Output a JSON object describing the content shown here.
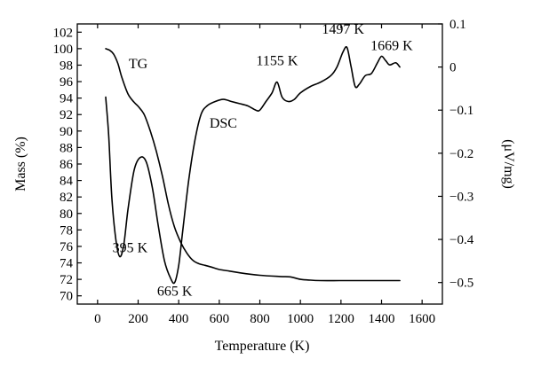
{
  "chart_data": {
    "type": "line",
    "title": "",
    "xlabel": "Temperature (K)",
    "ylabel": "Mass (%)",
    "y2label": "(μV/mg)",
    "xlim": [
      -100,
      1700
    ],
    "ylim": [
      69,
      103
    ],
    "y2lim": [
      -0.55,
      0.1
    ],
    "xticks": [
      0,
      200,
      400,
      600,
      800,
      1000,
      1200,
      1400,
      1600
    ],
    "yticks": [
      70,
      72,
      74,
      76,
      78,
      80,
      82,
      84,
      86,
      88,
      90,
      92,
      94,
      96,
      98,
      100,
      102
    ],
    "y2ticks": [
      -0.5,
      -0.4,
      -0.3,
      -0.2,
      -0.1,
      0,
      0.1
    ],
    "y2ticklabels": [
      "−0.5",
      "−0.4",
      "−0.3",
      "−0.2",
      "−0.1",
      "0",
      "0.1"
    ],
    "grid": false,
    "series": [
      {
        "name": "TG",
        "axis": "left",
        "x": [
          40,
          60,
          80,
          100,
          120,
          150,
          180,
          200,
          230,
          260,
          290,
          320,
          350,
          380,
          410,
          440,
          470,
          500,
          530,
          560,
          600,
          650,
          700,
          800,
          900,
          950,
          1000,
          1050,
          1100,
          1200,
          1300,
          1400,
          1490
        ],
        "y": [
          100,
          99.8,
          99.3,
          98.2,
          96.5,
          94.5,
          93.5,
          93.0,
          92.0,
          90.0,
          87.5,
          84.5,
          81.0,
          78.3,
          76.5,
          75.2,
          74.3,
          73.9,
          73.7,
          73.5,
          73.2,
          73.0,
          72.8,
          72.5,
          72.35,
          72.3,
          72.0,
          71.9,
          71.85,
          71.85,
          71.85,
          71.85,
          71.85
        ]
      },
      {
        "name": "DSC",
        "axis": "right",
        "x": [
          40,
          55,
          70,
          90,
          110,
          130,
          150,
          180,
          210,
          240,
          270,
          300,
          330,
          360,
          380,
          400,
          420,
          450,
          480,
          510,
          540,
          580,
          620,
          660,
          700,
          740,
          780,
          800,
          830,
          860,
          885,
          910,
          940,
          970,
          1000,
          1050,
          1100,
          1150,
          1180,
          1210,
          1230,
          1250,
          1270,
          1290,
          1320,
          1350,
          1380,
          1400,
          1420,
          1440,
          1470,
          1490
        ],
        "y": [
          -0.07,
          -0.16,
          -0.3,
          -0.4,
          -0.44,
          -0.41,
          -0.33,
          -0.24,
          -0.21,
          -0.22,
          -0.28,
          -0.37,
          -0.45,
          -0.49,
          -0.5,
          -0.46,
          -0.38,
          -0.26,
          -0.17,
          -0.11,
          -0.09,
          -0.08,
          -0.075,
          -0.08,
          -0.085,
          -0.09,
          -0.1,
          -0.1,
          -0.08,
          -0.06,
          -0.035,
          -0.07,
          -0.08,
          -0.075,
          -0.06,
          -0.045,
          -0.035,
          -0.02,
          0,
          0.035,
          0.045,
          0.0,
          -0.045,
          -0.04,
          -0.02,
          -0.015,
          0.01,
          0.025,
          0.015,
          0.005,
          0.01,
          0.0
        ]
      }
    ],
    "annotations": [
      {
        "text": "TG",
        "x": 200,
        "y": 97.6,
        "axis": "left"
      },
      {
        "text": "DSC",
        "x": 620,
        "y": 90.4,
        "axis": "left"
      },
      {
        "text": "395 K",
        "x": 160,
        "y": 75.3,
        "axis": "left"
      },
      {
        "text": "665 K",
        "x": 380,
        "y": 70.0,
        "axis": "left"
      },
      {
        "text": "1155 K",
        "x": 885,
        "y": 98.0,
        "axis": "left"
      },
      {
        "text": "1497 K",
        "x": 1210,
        "y": 101.8,
        "axis": "left"
      },
      {
        "text": "1669 K",
        "x": 1450,
        "y": 99.8,
        "axis": "left"
      }
    ]
  }
}
